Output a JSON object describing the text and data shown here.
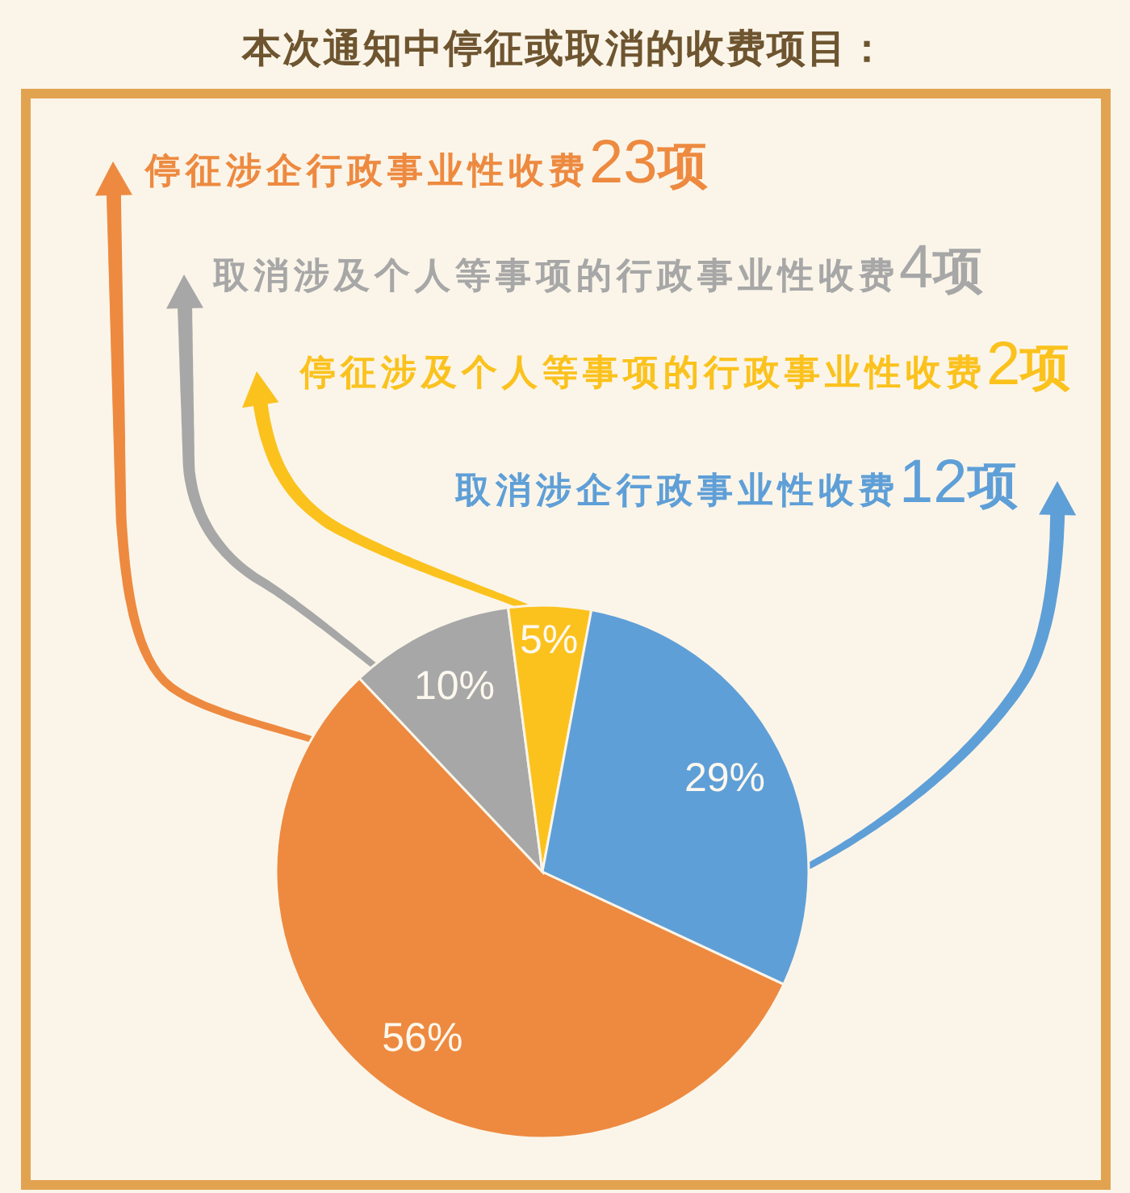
{
  "chart_data": {
    "type": "pie",
    "title": "本次通知中停征或取消的收费项目：",
    "categories": [
      "停征涉企行政事业性收费23项",
      "取消涉及个人等事项的行政事业性收费4项",
      "停征涉及个人等事项的行政事业性收费2项",
      "取消涉企行政事业性收费12项"
    ],
    "values": [
      56,
      10,
      5,
      29
    ],
    "colors": [
      "#ed8a40",
      "#a7a7a7",
      "#fbc21e",
      "#5f9fd7"
    ],
    "value_labels": [
      "56%",
      "10%",
      "5%",
      "29%"
    ],
    "legend": "top"
  }
}
